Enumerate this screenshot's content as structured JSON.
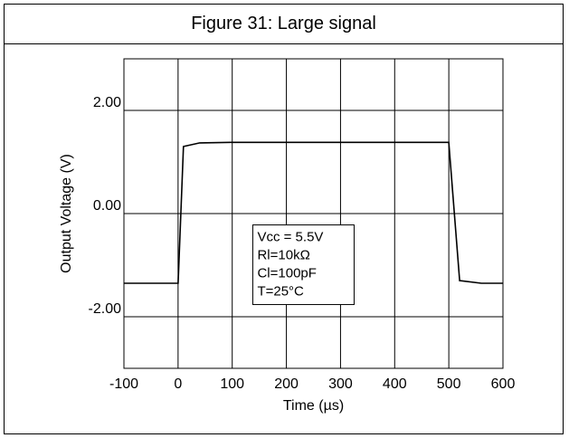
{
  "chart_data": {
    "type": "line",
    "title": "Figure 31: Large signal",
    "xlabel": "Time (µs)",
    "ylabel": "Output Voltage (V)",
    "xlim": [
      -100,
      600
    ],
    "ylim": [
      -3,
      3
    ],
    "x_ticks": [
      -100,
      0,
      100,
      200,
      300,
      400,
      500,
      600
    ],
    "x_tick_labels": [
      "-100",
      "0",
      "100",
      "200",
      "300",
      "400",
      "500",
      "600"
    ],
    "y_ticks": [
      2,
      0,
      -2
    ],
    "y_tick_labels": [
      "2.00",
      "0.00",
      "-2.00"
    ],
    "grid": true,
    "series": [
      {
        "x": [
          -100,
          0,
          10,
          40,
          100,
          200,
          300,
          400,
          500,
          520,
          560,
          600
        ],
        "y": [
          -1.35,
          -1.35,
          1.3,
          1.37,
          1.38,
          1.38,
          1.38,
          1.38,
          1.38,
          -1.3,
          -1.35,
          -1.35
        ],
        "color": "#000000"
      }
    ],
    "annotation": [
      "Vcc = 5.5V",
      "Rl=10kΩ",
      "Cl=100pF",
      "T=25°C"
    ]
  }
}
